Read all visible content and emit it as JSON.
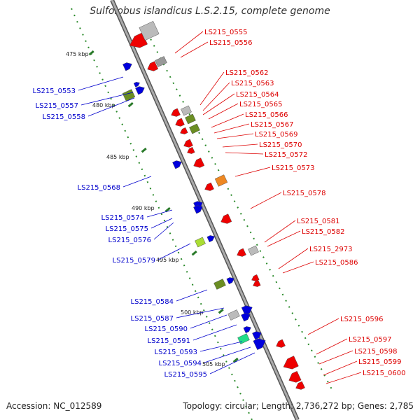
{
  "title": "Sulfolobus islandicus L.S.2.15, complete genome",
  "accession_text": "Accession: NC_012589",
  "topology_text": "Topology: circular; Length: 2,736,272 bp; Genes: 2,785",
  "colors": {
    "reverse_label": "#0000cc",
    "forward_label": "#dd0000",
    "backbone": "#888888",
    "tick": "#228822"
  },
  "ticks": [
    "475 kbp",
    "480 kbp",
    "485 kbp",
    "490 kbp",
    "495 kbp",
    "500 kbp",
    "505 kbp"
  ],
  "reverse_strand_labels": [
    "LS215_0553",
    "LS215_0557",
    "LS215_0558",
    "LS215_0568",
    "LS215_0574",
    "LS215_0575",
    "LS215_0576",
    "LS215_0579",
    "LS215_0584",
    "LS215_0587",
    "LS215_0590",
    "LS215_0591",
    "LS215_0593",
    "LS215_0594",
    "LS215_0595"
  ],
  "forward_strand_labels": [
    "LS215_0555",
    "LS215_0556",
    "LS215_0562",
    "LS215_0563",
    "LS215_0564",
    "LS215_0565",
    "LS215_0566",
    "LS215_0567",
    "LS215_0569",
    "LS215_0570",
    "LS215_0572",
    "LS215_0573",
    "LS215_0578",
    "LS215_0581",
    "LS215_0582",
    "LS215_2973",
    "LS215_0586",
    "LS215_0596",
    "LS215_0597",
    "LS215_0598",
    "LS215_0599",
    "LS215_0600"
  ]
}
